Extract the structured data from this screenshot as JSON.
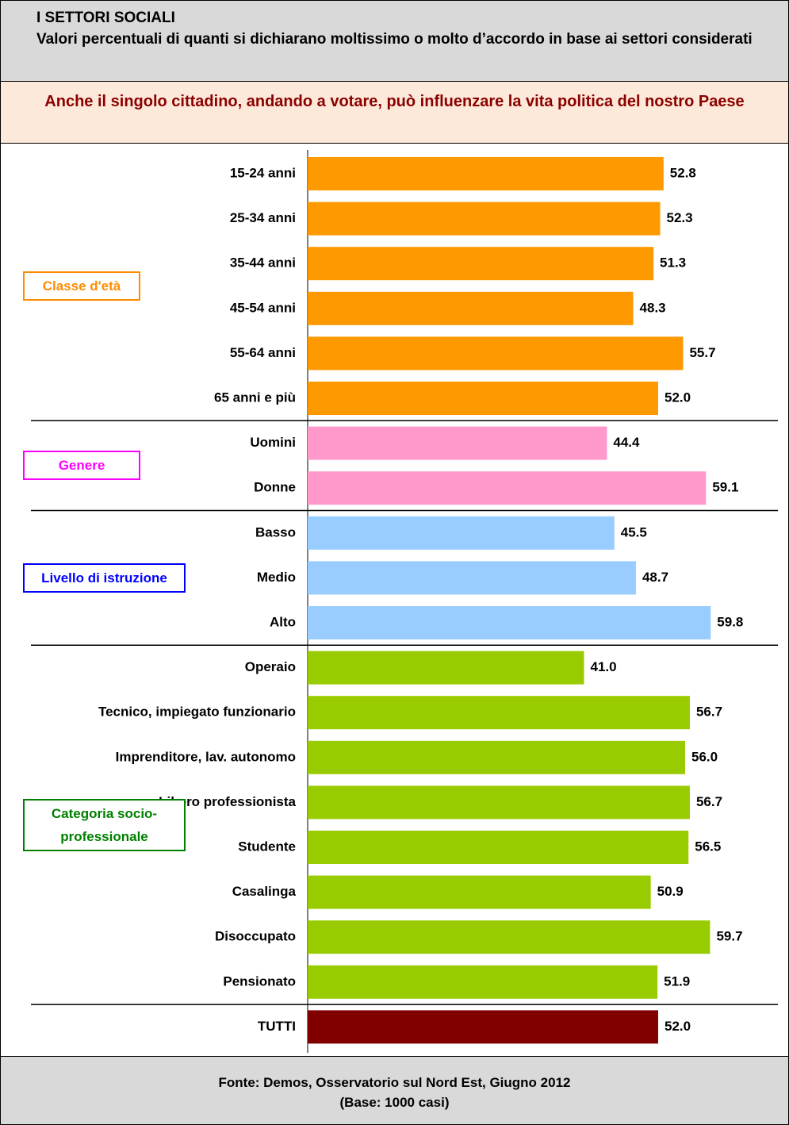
{
  "chart_data": {
    "type": "bar",
    "orientation": "horizontal",
    "title": "I SETTORI SOCIALI",
    "subtitle": "Valori percentuali di quanti si dichiarano moltissimo o molto d’accordo in base ai settori considerati",
    "question": "Anche il singolo cittadino, andando a votare, può influenzare la vita politica del nostro Paese",
    "source": "Fonte: Demos, Osservatorio sul Nord Est, Giugno 2012",
    "base": "(Base: 1000 casi)",
    "xlim": [
      0,
      70
    ],
    "groups": [
      {
        "name": "Classe d'età",
        "label_color": "#ff8c00",
        "color": "#ff9900",
        "categories": [
          "15-24 anni",
          "25-34 anni",
          "35-44 anni",
          "45-54 anni",
          "55-64 anni",
          "65 anni e più"
        ],
        "values": [
          52.8,
          52.3,
          51.3,
          48.3,
          55.7,
          52.0
        ],
        "value_labels": [
          "52.8",
          "52.3",
          "51.3",
          "48.3",
          "55.7",
          "52.0"
        ]
      },
      {
        "name": "Genere",
        "label_color": "#ff00ff",
        "color": "#ff99cc",
        "categories": [
          "Uomini",
          "Donne"
        ],
        "values": [
          44.4,
          59.1
        ],
        "value_labels": [
          "44.4",
          "59.1"
        ]
      },
      {
        "name": "Livello di istruzione",
        "label_color": "#0000ff",
        "color": "#99ccff",
        "categories": [
          "Basso",
          "Medio",
          "Alto"
        ],
        "values": [
          45.5,
          48.7,
          59.8
        ],
        "value_labels": [
          "45.5",
          "48.7",
          "59.8"
        ]
      },
      {
        "name": "Categoria socio-professionale",
        "label_color": "#008000",
        "color": "#99cc00",
        "categories": [
          "Operaio",
          "Tecnico, impiegato funzionario",
          "Imprenditore, lav. autonomo",
          "Libero professionista",
          "Studente",
          "Casalinga",
          "Disoccupato",
          "Pensionato"
        ],
        "values": [
          41.0,
          56.7,
          56.0,
          56.7,
          56.5,
          50.9,
          59.7,
          51.9
        ],
        "value_labels": [
          "41.0",
          "56.7",
          "56.0",
          "56.7",
          "56.5",
          "50.9",
          "59.7",
          "51.9"
        ]
      },
      {
        "name": null,
        "label_color": "#800000",
        "color": "#800000",
        "categories": [
          "TUTTI"
        ],
        "values": [
          52.0
        ],
        "value_labels": [
          "52.0"
        ]
      }
    ]
  }
}
